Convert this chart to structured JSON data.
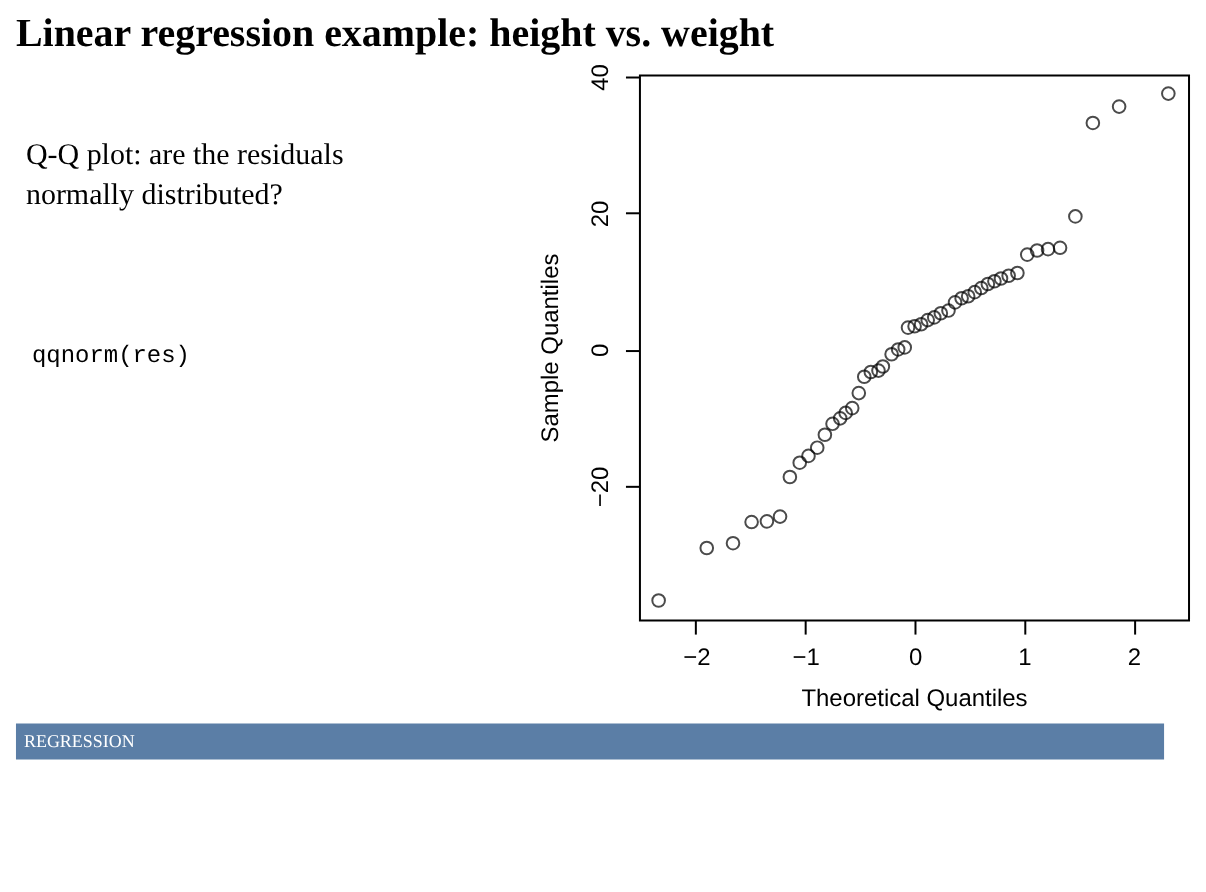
{
  "chart_data": {
    "type": "scatter",
    "title": "Linear regression example: height vs. weight",
    "xlabel": "Theoretical Quantiles",
    "ylabel": "Sample Quantiles",
    "marker": "circle",
    "grid": false,
    "annotations": [
      "Q-Q plot: are the residuals normally distributed?",
      "qqnorm(res)",
      "REGRESSION"
    ],
    "xlim": [
      -2.52,
      2.5
    ],
    "ylim": [
      -39.6,
      40.3
    ],
    "xticks": [
      -2,
      -1,
      0,
      1,
      2
    ],
    "yticks": [
      -20,
      0,
      20,
      40
    ],
    "series": [
      {
        "color": "#000000",
        "x": [
          -2.34,
          -1.9,
          -1.66,
          -1.49,
          -1.35,
          -1.23,
          -1.14,
          -1.05,
          -0.97,
          -0.89,
          -0.82,
          -0.75,
          -0.68,
          -0.63,
          -0.57,
          -0.51,
          -0.46,
          -0.4,
          -0.33,
          -0.29,
          -0.21,
          -0.15,
          -0.09,
          -0.06,
          0,
          0.06,
          0.12,
          0.18,
          0.24,
          0.31,
          0.37,
          0.43,
          0.49,
          0.55,
          0.61,
          0.67,
          0.73,
          0.79,
          0.86,
          0.94,
          1.03,
          1.12,
          1.22,
          1.33,
          1.47,
          1.63,
          1.87,
          2.32
        ],
        "values": [
          -36.8,
          -29.1,
          -28.4,
          -25.3,
          -25.2,
          -24.5,
          -18.7,
          -16.6,
          -15.6,
          -14.4,
          -12.5,
          -10.9,
          -10.1,
          -9.3,
          -8.6,
          -6.4,
          -4.0,
          -3.3,
          -3.1,
          -2.5,
          -0.7,
          0.0,
          0.3,
          3.2,
          3.4,
          3.7,
          4.3,
          4.7,
          5.3,
          5.7,
          6.9,
          7.5,
          7.8,
          8.4,
          9.0,
          9.6,
          10.0,
          10.4,
          10.8,
          11.2,
          13.9,
          14.5,
          14.7,
          14.9,
          19.5,
          33.2,
          35.6,
          37.5
        ]
      }
    ]
  }
}
